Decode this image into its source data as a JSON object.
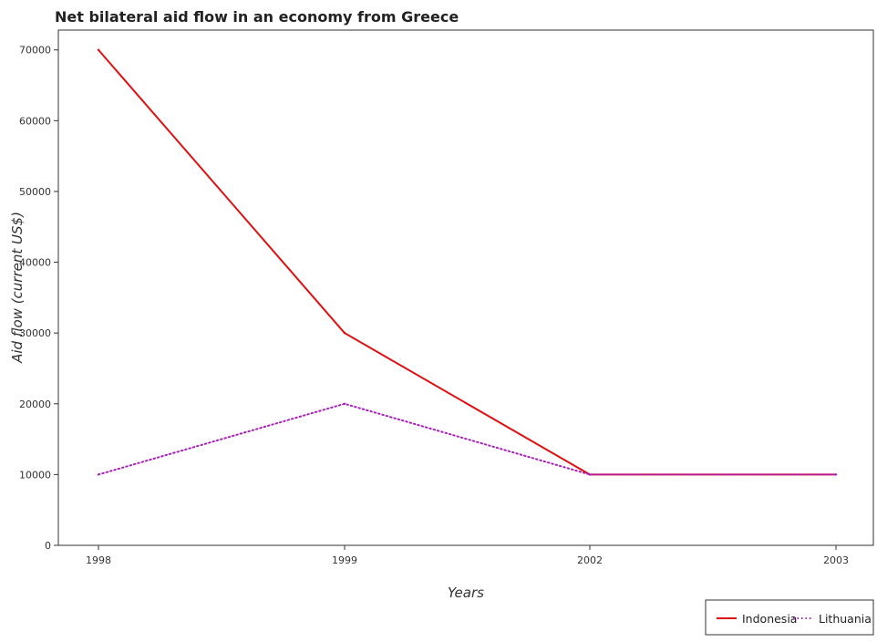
{
  "chart_data": {
    "type": "line",
    "title": "Net bilateral aid flow in an economy from Greece",
    "xlabel": "Years",
    "ylabel": "Aid flow (current US$)",
    "categories": [
      "1998",
      "1999",
      "2002",
      "2003"
    ],
    "yticks": [
      "0",
      "10000",
      "20000",
      "30000",
      "40000",
      "50000",
      "60000",
      "70000"
    ],
    "ylim": [
      0,
      72800
    ],
    "grid": false,
    "legend_position": "bottom-right",
    "series": [
      {
        "name": "Indonesia",
        "values": [
          70000,
          30000,
          10000,
          10000
        ],
        "color": "#dd1111",
        "style": "solid"
      },
      {
        "name": "Lithuania",
        "values": [
          10000,
          20000,
          10000,
          10000
        ],
        "color": "#aa22bb",
        "style": "dotted"
      }
    ]
  }
}
